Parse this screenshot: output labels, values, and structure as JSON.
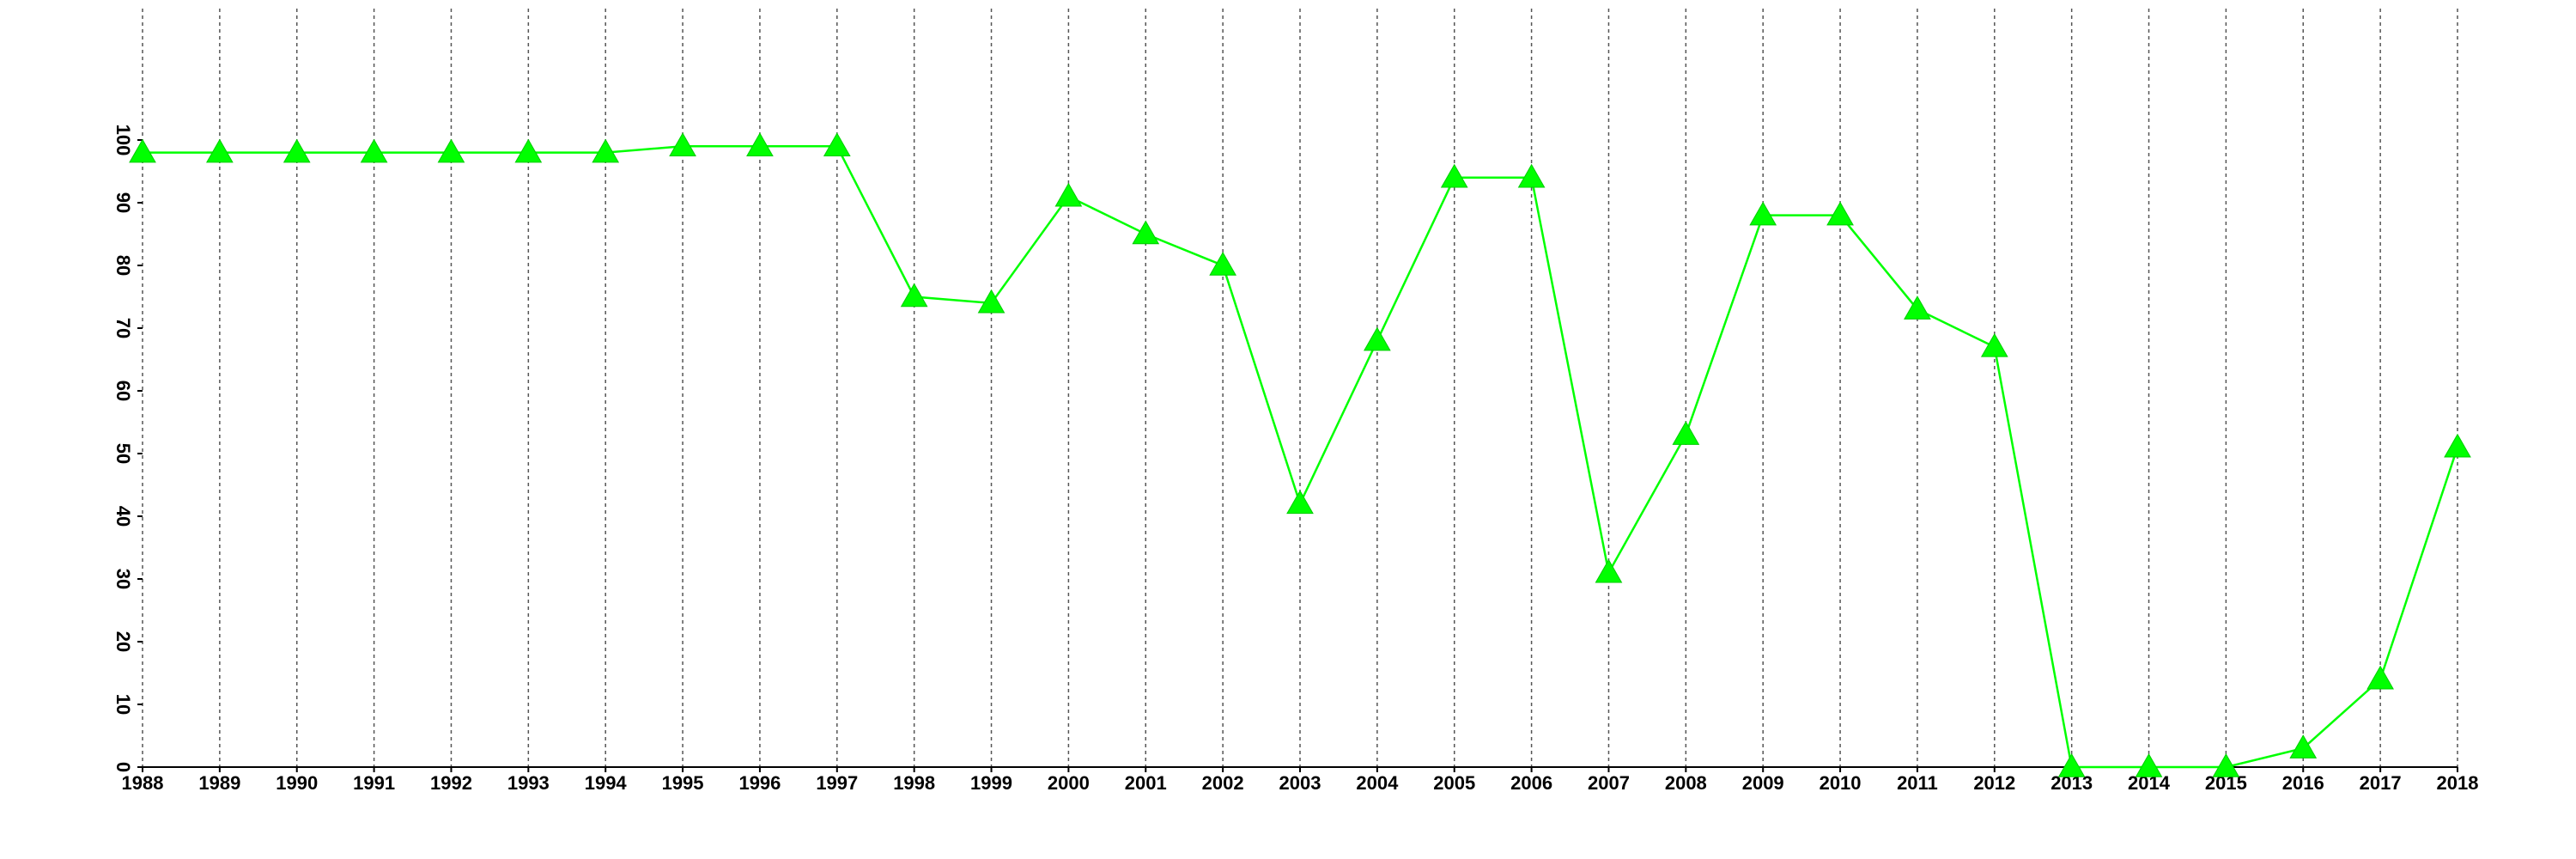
{
  "chart_data": {
    "type": "line",
    "x": [
      1988,
      1989,
      1990,
      1991,
      1992,
      1993,
      1994,
      1995,
      1996,
      1997,
      1998,
      1999,
      2000,
      2001,
      2002,
      2003,
      2004,
      2005,
      2006,
      2007,
      2008,
      2009,
      2010,
      2011,
      2012,
      2013,
      2014,
      2015,
      2016,
      2017,
      2018
    ],
    "values": [
      98,
      98,
      98,
      98,
      98,
      98,
      98,
      99,
      99,
      99,
      75,
      74,
      91,
      85,
      80,
      42,
      68,
      94,
      94,
      31,
      53,
      88,
      88,
      73,
      67,
      0,
      0,
      0,
      3,
      14,
      51
    ],
    "color": "#00ff00",
    "marker": "triangle",
    "xlim": [
      1988,
      2018
    ],
    "xticks": [
      1988,
      1989,
      1990,
      1991,
      1992,
      1993,
      1994,
      1995,
      1996,
      1997,
      1998,
      1999,
      2000,
      2001,
      2002,
      2003,
      2004,
      2005,
      2006,
      2007,
      2008,
      2009,
      2010,
      2011,
      2012,
      2013,
      2014,
      2015,
      2016,
      2017,
      2018
    ],
    "ylim": [
      0,
      100
    ],
    "yticks": [
      0,
      10,
      20,
      30,
      40,
      50,
      60,
      70,
      80,
      90,
      100
    ],
    "grid": "x"
  }
}
